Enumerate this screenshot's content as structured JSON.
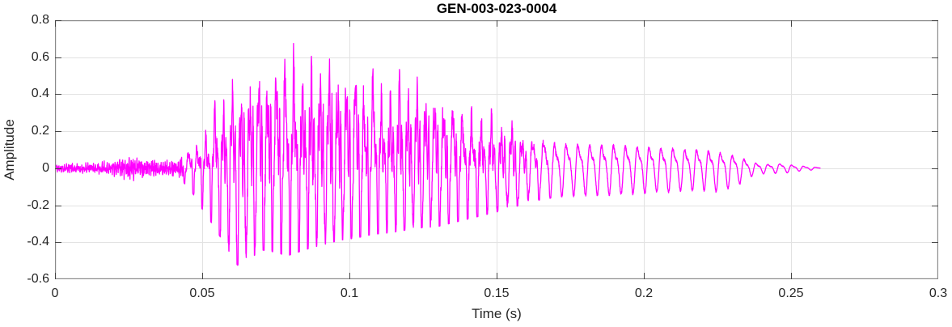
{
  "colors": {
    "line": "#FF00FF",
    "box": "#8a8a8a",
    "tick": "#454545",
    "tick_label": "#262626",
    "grid": "#e2e2e2",
    "title": "#000000",
    "background": "#ffffff"
  },
  "chart_data": {
    "type": "line",
    "title": "GEN-003-023-0004",
    "xlabel": "Time (s)",
    "ylabel": "Amplitude",
    "xlim": [
      0,
      0.3
    ],
    "ylim": [
      -0.6,
      0.8
    ],
    "x_ticks": [
      0,
      0.05,
      0.1,
      0.15,
      0.2,
      0.25,
      0.3
    ],
    "x_tick_labels": [
      "0",
      "0.05",
      "0.1",
      "0.15",
      "0.2",
      "0.25",
      "0.3"
    ],
    "y_ticks": [
      0.8,
      0.6,
      0.4,
      0.2,
      0,
      -0.2,
      -0.4,
      -0.6
    ],
    "y_tick_labels": [
      "0.8",
      "0.6",
      "0.4",
      "0.2",
      "0",
      "-0.2",
      "-0.4",
      "-0.6"
    ],
    "grid": true,
    "legend": "none",
    "series_name": "acoustic waveform",
    "line_color": "#FF00FF",
    "line_width": 1.3,
    "description": "Dense magenta oscillatory burst: low noise floor 0-0.044 s, strong voiced burst peaking +0.74 near 0.079 s and -0.50 near 0.062 s, gradual decay into a ~250-330 Hz periodic tone that fades out by 0.26 s.",
    "signal": {
      "t_start": 0.0,
      "t_end": 0.26,
      "peak_positive": {
        "t": 0.079,
        "value": 0.74
      },
      "peak_negative": {
        "t": 0.062,
        "value": -0.5
      },
      "segments": [
        {
          "type": "noise-floor",
          "t0": 0.0,
          "t1": 0.0435
        },
        {
          "type": "voiced-burst",
          "t0": 0.0435,
          "t1": 0.165,
          "f0_hz": 335
        },
        {
          "type": "decaying-tone",
          "t0": 0.165,
          "t1": 0.26,
          "f0_hz": 248
        }
      ],
      "envelope": [
        [
          0.0,
          0.02,
          -0.02
        ],
        [
          0.008,
          0.026,
          -0.026
        ],
        [
          0.015,
          0.03,
          -0.03
        ],
        [
          0.021,
          0.042,
          -0.04
        ],
        [
          0.026,
          0.07,
          -0.065
        ],
        [
          0.03,
          0.052,
          -0.055
        ],
        [
          0.036,
          0.036,
          -0.036
        ],
        [
          0.042,
          0.048,
          -0.048
        ],
        [
          0.046,
          0.11,
          -0.11
        ],
        [
          0.05,
          0.22,
          -0.21
        ],
        [
          0.054,
          0.34,
          -0.3
        ],
        [
          0.058,
          0.44,
          -0.4
        ],
        [
          0.062,
          0.47,
          -0.5
        ],
        [
          0.066,
          0.5,
          -0.47
        ],
        [
          0.07,
          0.56,
          -0.42
        ],
        [
          0.074,
          0.64,
          -0.43
        ],
        [
          0.079,
          0.74,
          -0.45
        ],
        [
          0.083,
          0.66,
          -0.43
        ],
        [
          0.087,
          0.7,
          -0.41
        ],
        [
          0.092,
          0.64,
          -0.39
        ],
        [
          0.097,
          0.61,
          -0.37
        ],
        [
          0.102,
          0.58,
          -0.36
        ],
        [
          0.108,
          0.56,
          -0.34
        ],
        [
          0.115,
          0.52,
          -0.33
        ],
        [
          0.122,
          0.48,
          -0.31
        ],
        [
          0.13,
          0.44,
          -0.3
        ],
        [
          0.138,
          0.38,
          -0.27
        ],
        [
          0.146,
          0.32,
          -0.24
        ],
        [
          0.154,
          0.27,
          -0.21
        ],
        [
          0.162,
          0.205,
          -0.17
        ],
        [
          0.17,
          0.18,
          -0.15
        ],
        [
          0.18,
          0.17,
          -0.145
        ],
        [
          0.19,
          0.165,
          -0.14
        ],
        [
          0.2,
          0.155,
          -0.135
        ],
        [
          0.21,
          0.145,
          -0.125
        ],
        [
          0.218,
          0.135,
          -0.115
        ],
        [
          0.225,
          0.115,
          -0.125
        ],
        [
          0.232,
          0.085,
          -0.09
        ],
        [
          0.237,
          0.04,
          -0.04
        ],
        [
          0.242,
          0.028,
          -0.026
        ],
        [
          0.247,
          0.034,
          -0.028
        ],
        [
          0.252,
          0.018,
          -0.016
        ],
        [
          0.257,
          0.01,
          -0.01
        ],
        [
          0.26,
          0.005,
          -0.005
        ]
      ]
    }
  }
}
